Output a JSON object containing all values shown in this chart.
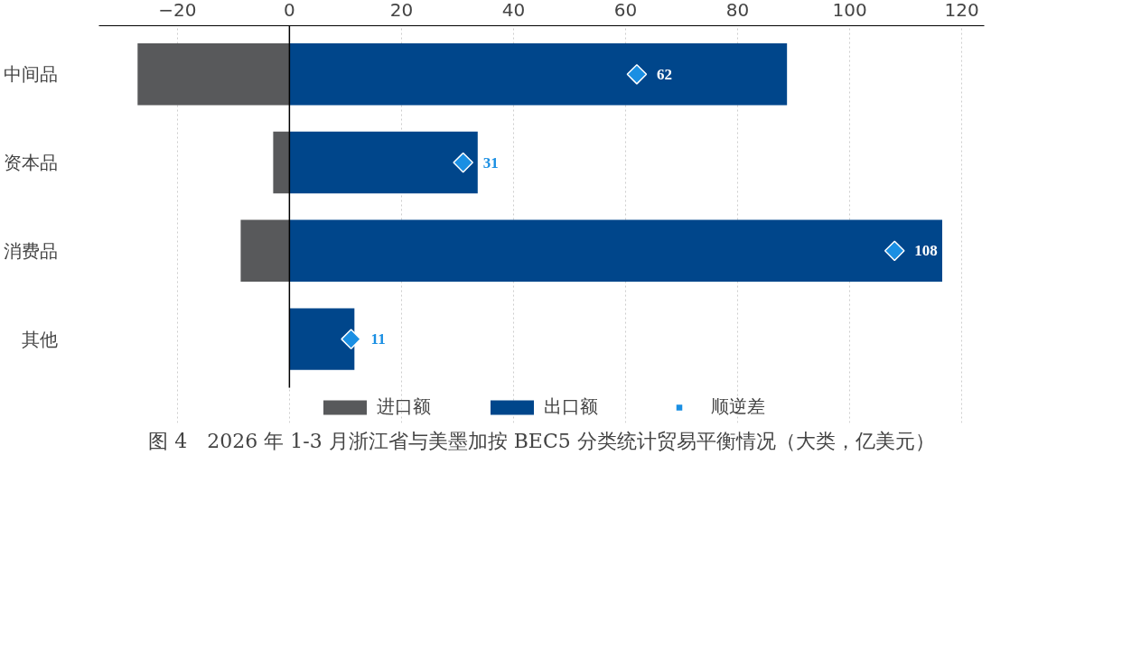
{
  "chart_data": {
    "type": "bar",
    "orientation": "horizontal",
    "stacked": true,
    "title": "图 4　2026 年 1-3 月浙江省与美墨加按 BEC5 分类统计贸易平衡情况（大类，亿美元）",
    "categories": [
      "中间品",
      "资本品",
      "消费品",
      "其他"
    ],
    "series": [
      {
        "name": "进口额",
        "color": "#58595b",
        "values": [
          -27.1,
          -2.9,
          -8.7,
          0
        ]
      },
      {
        "name": "出口额",
        "color": "#00468b",
        "values": [
          88.8,
          33.6,
          116.5,
          11.6
        ]
      },
      {
        "name": "顺逆差",
        "type": "scatter",
        "marker": "diamond",
        "color": "#1a8fe3",
        "values": [
          62,
          31,
          108,
          11
        ],
        "value_labels": [
          "62",
          "31",
          "108",
          "11"
        ]
      }
    ],
    "xlim": [
      -34,
      124
    ],
    "xticks": [
      {
        "value": -20,
        "label": "−20"
      },
      0,
      20,
      40,
      60,
      80,
      100,
      120
    ],
    "grid": "x",
    "legend": "bottom",
    "ref_lines": [
      {
        "axis": "x",
        "value": 0,
        "color": "#000000"
      }
    ]
  }
}
